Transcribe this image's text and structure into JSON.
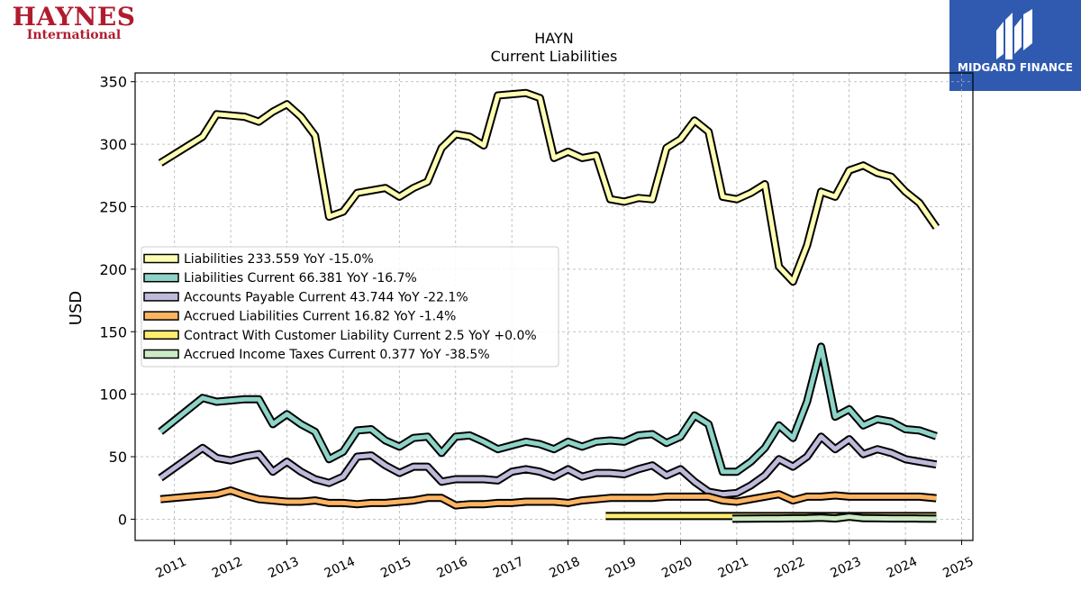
{
  "logos": {
    "left_line1": "HAYNES",
    "left_line2": "International",
    "right_text": "MIDGARD FINANCE"
  },
  "chart_data": {
    "type": "line",
    "title": "HAYN",
    "subtitle": "Current  Liabilities",
    "ylabel": "USD",
    "xlabel": "",
    "ylim": [
      -17,
      357
    ],
    "xlim": [
      2010.3,
      2025.2
    ],
    "yticks": [
      0,
      50,
      100,
      150,
      200,
      250,
      300,
      350
    ],
    "xticks": [
      2011,
      2012,
      2013,
      2014,
      2015,
      2016,
      2017,
      2018,
      2019,
      2020,
      2021,
      2022,
      2023,
      2024,
      2025
    ],
    "grid": true,
    "legend_position": "center-left",
    "series": [
      {
        "name": "Liabilities",
        "legend": "Liabilities  233.559 YoY -15.0%",
        "color": "#ffffb3",
        "x": [
          2010.75,
          2011.0,
          2011.25,
          2011.5,
          2011.75,
          2012.0,
          2012.25,
          2012.5,
          2012.75,
          2013.0,
          2013.25,
          2013.5,
          2013.75,
          2014.0,
          2014.25,
          2014.5,
          2014.75,
          2015.0,
          2015.25,
          2015.5,
          2015.75,
          2016.0,
          2016.25,
          2016.5,
          2016.75,
          2017.0,
          2017.25,
          2017.5,
          2017.75,
          2018.0,
          2018.25,
          2018.5,
          2018.75,
          2019.0,
          2019.25,
          2019.5,
          2019.75,
          2020.0,
          2020.25,
          2020.5,
          2020.75,
          2021.0,
          2021.25,
          2021.5,
          2021.75,
          2022.0,
          2022.25,
          2022.5,
          2022.75,
          2023.0,
          2023.25,
          2023.5,
          2023.75,
          2024.0,
          2024.25,
          2024.55
        ],
        "values": [
          285,
          292,
          299,
          306,
          324,
          323,
          322,
          318,
          326,
          332,
          322,
          307,
          242,
          246,
          261,
          263,
          265,
          258,
          265,
          270,
          297,
          308,
          306,
          299,
          339,
          340,
          341,
          337,
          289,
          294,
          289,
          291,
          256,
          254,
          257,
          256,
          297,
          304,
          319,
          310,
          258,
          256,
          261,
          268,
          202,
          190,
          219,
          262,
          258,
          279,
          283,
          277,
          274,
          262,
          253,
          233.559
        ]
      },
      {
        "name": "Liabilities Current",
        "legend": "Liabilities Current  66.381 YoY -16.7%",
        "color": "#8dd3c7",
        "x": [
          2010.75,
          2011.0,
          2011.25,
          2011.5,
          2011.75,
          2012.0,
          2012.25,
          2012.5,
          2012.75,
          2013.0,
          2013.25,
          2013.5,
          2013.75,
          2014.0,
          2014.25,
          2014.5,
          2014.75,
          2015.0,
          2015.25,
          2015.5,
          2015.75,
          2016.0,
          2016.25,
          2016.5,
          2016.75,
          2017.0,
          2017.25,
          2017.5,
          2017.75,
          2018.0,
          2018.25,
          2018.5,
          2018.75,
          2019.0,
          2019.25,
          2019.5,
          2019.75,
          2020.0,
          2020.25,
          2020.5,
          2020.75,
          2021.0,
          2021.25,
          2021.5,
          2021.75,
          2022.0,
          2022.25,
          2022.5,
          2022.75,
          2023.0,
          2023.25,
          2023.5,
          2023.75,
          2024.0,
          2024.25,
          2024.55
        ],
        "values": [
          70,
          79,
          88,
          97,
          94,
          95,
          96,
          96,
          76,
          84,
          76,
          70,
          48,
          54,
          71,
          72,
          63,
          58,
          65,
          66,
          53,
          66,
          67,
          62,
          56,
          59,
          62,
          60,
          56,
          62,
          58,
          62,
          63,
          62,
          67,
          68,
          61,
          66,
          83,
          76,
          38,
          38,
          46,
          57,
          75,
          65,
          94,
          138,
          82,
          88,
          75,
          80,
          78,
          72,
          71,
          66.381
        ]
      },
      {
        "name": "Accounts Payable Current",
        "legend": "Accounts Payable Current  43.744 YoY -22.1%",
        "color": "#bebada",
        "x": [
          2010.75,
          2011.0,
          2011.25,
          2011.5,
          2011.75,
          2012.0,
          2012.25,
          2012.5,
          2012.75,
          2013.0,
          2013.25,
          2013.5,
          2013.75,
          2014.0,
          2014.25,
          2014.5,
          2014.75,
          2015.0,
          2015.25,
          2015.5,
          2015.75,
          2016.0,
          2016.25,
          2016.5,
          2016.75,
          2017.0,
          2017.25,
          2017.5,
          2017.75,
          2018.0,
          2018.25,
          2018.5,
          2018.75,
          2019.0,
          2019.25,
          2019.5,
          2019.75,
          2020.0,
          2020.25,
          2020.5,
          2020.75,
          2021.0,
          2021.25,
          2021.5,
          2021.75,
          2022.0,
          2022.25,
          2022.5,
          2022.75,
          2023.0,
          2023.25,
          2023.5,
          2023.75,
          2024.0,
          2024.25,
          2024.55
        ],
        "values": [
          33,
          41,
          49,
          57,
          49,
          47,
          50,
          52,
          38,
          46,
          38,
          32,
          29,
          34,
          50,
          51,
          43,
          37,
          42,
          42,
          30,
          32,
          32,
          32,
          31,
          38,
          40,
          38,
          34,
          40,
          34,
          37,
          37,
          36,
          40,
          43,
          35,
          40,
          30,
          22,
          20,
          21,
          27,
          35,
          48,
          42,
          50,
          66,
          56,
          64,
          52,
          56,
          53,
          48,
          46,
          43.744
        ]
      },
      {
        "name": "Accrued Liabilities Current",
        "legend": "Accrued Liabilities Current  16.82 YoY -1.4%",
        "color": "#fdb462",
        "x": [
          2010.75,
          2011.0,
          2011.25,
          2011.5,
          2011.75,
          2012.0,
          2012.25,
          2012.5,
          2012.75,
          2013.0,
          2013.25,
          2013.5,
          2013.75,
          2014.0,
          2014.25,
          2014.5,
          2014.75,
          2015.0,
          2015.25,
          2015.5,
          2015.75,
          2016.0,
          2016.25,
          2016.5,
          2016.75,
          2017.0,
          2017.25,
          2017.5,
          2017.75,
          2018.0,
          2018.25,
          2018.5,
          2018.75,
          2019.0,
          2019.25,
          2019.5,
          2019.75,
          2020.0,
          2020.25,
          2020.5,
          2020.75,
          2021.0,
          2021.25,
          2021.5,
          2021.75,
          2022.0,
          2022.25,
          2022.5,
          2022.75,
          2023.0,
          2023.25,
          2023.5,
          2023.75,
          2024.0,
          2024.25,
          2024.55
        ],
        "values": [
          16,
          17,
          18,
          19,
          20,
          23,
          19,
          16,
          15,
          14,
          14,
          15,
          13,
          13,
          12,
          13,
          13,
          14,
          15,
          17,
          17,
          11,
          12,
          12,
          13,
          13,
          14,
          14,
          14,
          13,
          15,
          16,
          17,
          17,
          17,
          17,
          18,
          18,
          18,
          18,
          15,
          14,
          16,
          18,
          20,
          15,
          18,
          18,
          19,
          18,
          18,
          18,
          18,
          18,
          18,
          16.82
        ]
      },
      {
        "name": "Contract With Customer Liability Current",
        "legend": "Contract With Customer Liability Current  2.5 YoY +0.0%",
        "color": "#ffed6f",
        "x": [
          2018.67,
          2019.0,
          2019.5,
          2020.0,
          2020.5,
          2021.0,
          2021.5,
          2022.0,
          2022.5,
          2023.0,
          2023.5,
          2024.0,
          2024.55
        ],
        "values": [
          2.5,
          2.5,
          2.5,
          2.5,
          2.5,
          2.5,
          2.5,
          2.5,
          2.5,
          2.5,
          2.5,
          2.5,
          2.5
        ]
      },
      {
        "name": "Accrued Income Taxes Current",
        "legend": "Accrued Income Taxes Current  0.377 YoY -38.5%",
        "color": "#ccebc5",
        "x": [
          2020.92,
          2021.25,
          2021.5,
          2021.75,
          2022.0,
          2022.25,
          2022.5,
          2022.75,
          2023.0,
          2023.25,
          2023.5,
          2023.75,
          2024.0,
          2024.25,
          2024.55
        ],
        "values": [
          0.4,
          0.5,
          0.6,
          0.6,
          0.7,
          0.8,
          1.2,
          0.6,
          2.0,
          0.8,
          0.7,
          0.6,
          0.6,
          0.5,
          0.377
        ]
      }
    ]
  }
}
